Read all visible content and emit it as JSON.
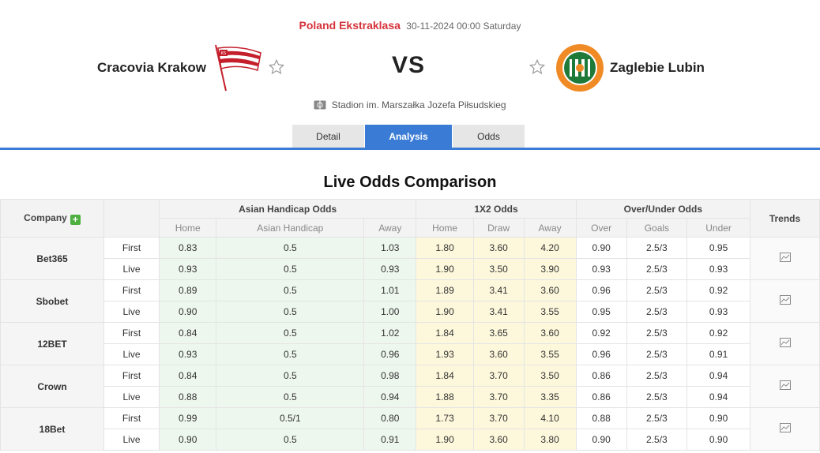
{
  "match": {
    "league": "Poland Ekstraklasa",
    "datetime": "30-11-2024 00:00 Saturday",
    "home_team": "Cracovia Krakow",
    "away_team": "Zaglebie Lubin",
    "vs": "VS",
    "venue": "Stadion im. Marszałka Jozefa Piłsudskieg",
    "home_logo_text": "KS CRACOVIA",
    "away_logo_text": "ZAGŁĘBIE LUBIN SA"
  },
  "tabs": [
    {
      "label": "Detail",
      "active": false
    },
    {
      "label": "Analysis",
      "active": true
    },
    {
      "label": "Odds",
      "active": false
    }
  ],
  "section_title": "Live Odds Comparison",
  "table": {
    "headers": {
      "company": "Company",
      "add_symbol": "+",
      "asian_handicap": "Asian Handicap Odds",
      "x12": "1X2 Odds",
      "over_under": "Over/Under Odds",
      "trends": "Trends"
    },
    "subheaders": {
      "ah": [
        "Home",
        "Asian Handicap",
        "Away"
      ],
      "x12": [
        "Home",
        "Draw",
        "Away"
      ],
      "ou": [
        "Over",
        "Goals",
        "Under"
      ]
    },
    "rows": [
      {
        "company": "Bet365",
        "lines": [
          {
            "type": "First",
            "ah": [
              "0.83",
              "0.5",
              "1.03"
            ],
            "x12": [
              "1.80",
              "3.60",
              "4.20"
            ],
            "ou": [
              "0.90",
              "2.5/3",
              "0.95"
            ]
          },
          {
            "type": "Live",
            "ah": [
              "0.93",
              "0.5",
              "0.93"
            ],
            "x12": [
              "1.90",
              "3.50",
              "3.90"
            ],
            "ou": [
              "0.93",
              "2.5/3",
              "0.93"
            ]
          }
        ]
      },
      {
        "company": "Sbobet",
        "lines": [
          {
            "type": "First",
            "ah": [
              "0.89",
              "0.5",
              "1.01"
            ],
            "x12": [
              "1.89",
              "3.41",
              "3.60"
            ],
            "ou": [
              "0.96",
              "2.5/3",
              "0.92"
            ]
          },
          {
            "type": "Live",
            "ah": [
              "0.90",
              "0.5",
              "1.00"
            ],
            "x12": [
              "1.90",
              "3.41",
              "3.55"
            ],
            "ou": [
              "0.95",
              "2.5/3",
              "0.93"
            ]
          }
        ]
      },
      {
        "company": "12BET",
        "lines": [
          {
            "type": "First",
            "ah": [
              "0.84",
              "0.5",
              "1.02"
            ],
            "x12": [
              "1.84",
              "3.65",
              "3.60"
            ],
            "ou": [
              "0.92",
              "2.5/3",
              "0.92"
            ]
          },
          {
            "type": "Live",
            "ah": [
              "0.93",
              "0.5",
              "0.96"
            ],
            "x12": [
              "1.93",
              "3.60",
              "3.55"
            ],
            "ou": [
              "0.96",
              "2.5/3",
              "0.91"
            ]
          }
        ]
      },
      {
        "company": "Crown",
        "lines": [
          {
            "type": "First",
            "ah": [
              "0.84",
              "0.5",
              "0.98"
            ],
            "x12": [
              "1.84",
              "3.70",
              "3.50"
            ],
            "ou": [
              "0.86",
              "2.5/3",
              "0.94"
            ]
          },
          {
            "type": "Live",
            "ah": [
              "0.88",
              "0.5",
              "0.94"
            ],
            "x12": [
              "1.88",
              "3.70",
              "3.35"
            ],
            "ou": [
              "0.86",
              "2.5/3",
              "0.94"
            ]
          }
        ]
      },
      {
        "company": "18Bet",
        "lines": [
          {
            "type": "First",
            "ah": [
              "0.99",
              "0.5/1",
              "0.80"
            ],
            "x12": [
              "1.73",
              "3.70",
              "4.10"
            ],
            "ou": [
              "0.88",
              "2.5/3",
              "0.90"
            ]
          },
          {
            "type": "Live",
            "ah": [
              "0.90",
              "0.5",
              "0.91"
            ],
            "x12": [
              "1.90",
              "3.60",
              "3.80"
            ],
            "ou": [
              "0.90",
              "2.5/3",
              "0.90"
            ]
          }
        ]
      }
    ]
  },
  "icons": {
    "favorite": "star-outline-icon",
    "venue": "stadium-icon",
    "trend": "line-chart-icon",
    "add": "plus-icon"
  },
  "colors": {
    "accent": "#3a7bd5",
    "league": "#d6333b",
    "add": "#4caf3e",
    "ah_bg": "#eef7ee",
    "x12_bg": "#fdf8dc"
  }
}
